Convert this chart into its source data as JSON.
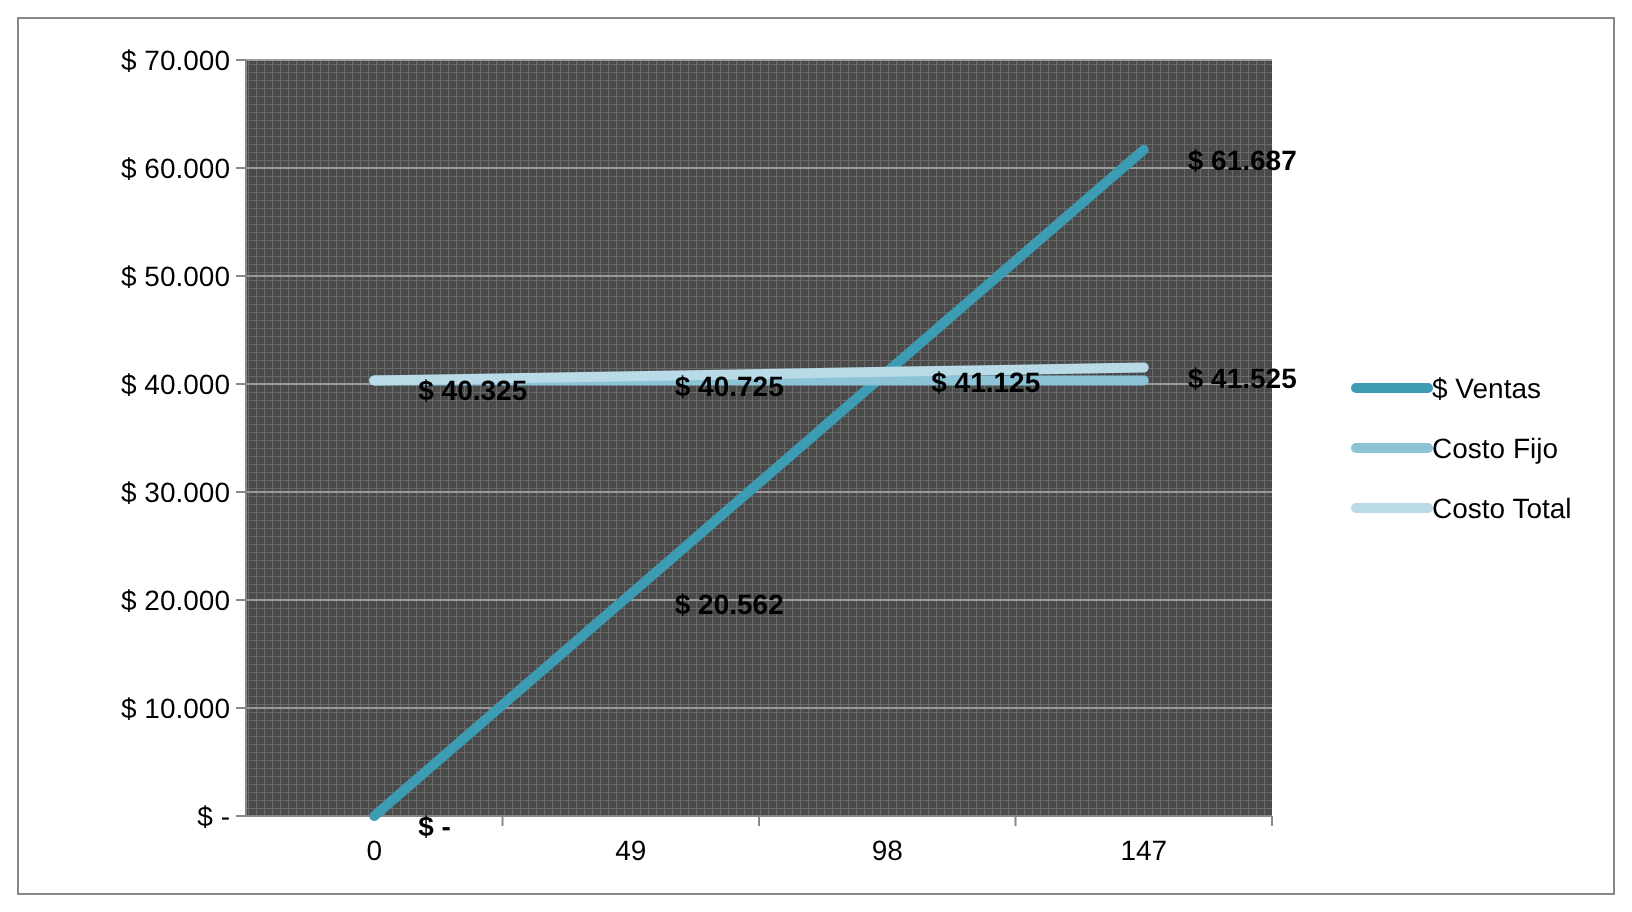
{
  "chart_data": {
    "type": "line",
    "categories": [
      "0",
      "49",
      "98",
      "147"
    ],
    "series": [
      {
        "name": "$ Ventas",
        "color": "#3b9cb3",
        "values": [
          0,
          20562,
          41125,
          61687
        ],
        "value_labels": [
          "$ -",
          "$ 20.562",
          null,
          "$ 61.687"
        ]
      },
      {
        "name": "Costo Fijo",
        "color": "#8cc3d6",
        "values": [
          40325,
          40325,
          40325,
          40325
        ]
      },
      {
        "name": "Costo Total",
        "color": "#b9dbe7",
        "values": [
          40325,
          40725,
          41125,
          41525
        ],
        "value_labels": [
          "$ 40.325",
          "$ 40.725",
          "$ 41.125",
          "$ 41.525"
        ]
      }
    ],
    "ylim": [
      0,
      70000
    ],
    "yticks": [
      {
        "value": 0,
        "label": "$ -"
      },
      {
        "value": 10000,
        "label": "$ 10.000"
      },
      {
        "value": 20000,
        "label": "$ 20.000"
      },
      {
        "value": 30000,
        "label": "$ 30.000"
      },
      {
        "value": 40000,
        "label": "$ 40.000"
      },
      {
        "value": 50000,
        "label": "$ 50.000"
      },
      {
        "value": 60000,
        "label": "$ 60.000"
      },
      {
        "value": 70000,
        "label": "$ 70.000"
      }
    ],
    "grid": "y",
    "legend": "right",
    "marker": "none",
    "line_style": "solid"
  }
}
